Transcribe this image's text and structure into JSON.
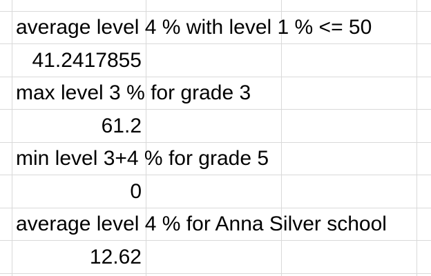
{
  "rows": [
    {
      "label": "average level 4 % with level 1 % <= 50",
      "value": "41.2417855"
    },
    {
      "label": "max level 3 % for grade 3",
      "value": "61.2"
    },
    {
      "label": "min level 3+4 % for grade 5",
      "value": "0"
    },
    {
      "label": "average level 4 % for Anna Silver school",
      "value": "12.62"
    }
  ],
  "colors": {
    "gridline": "#d9d9d9",
    "text": "#000000",
    "background": "#ffffff"
  }
}
